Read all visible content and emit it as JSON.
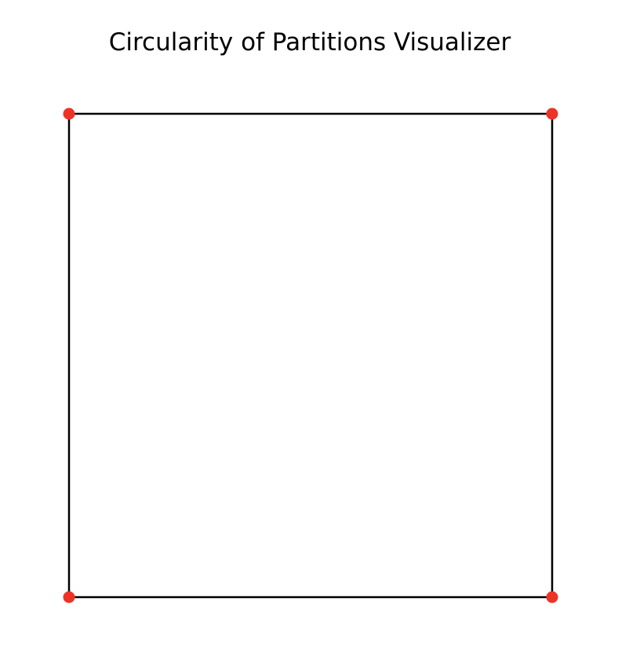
{
  "title": "Circularity of Partitions Visualizer",
  "colors": {
    "background": "#ffffff",
    "edge": "#000000",
    "vertex": "#ee3326",
    "title": "#000000"
  },
  "shape": {
    "vertex_count": 4,
    "edges": [
      [
        0,
        1
      ],
      [
        1,
        2
      ],
      [
        2,
        3
      ],
      [
        3,
        0
      ]
    ]
  }
}
